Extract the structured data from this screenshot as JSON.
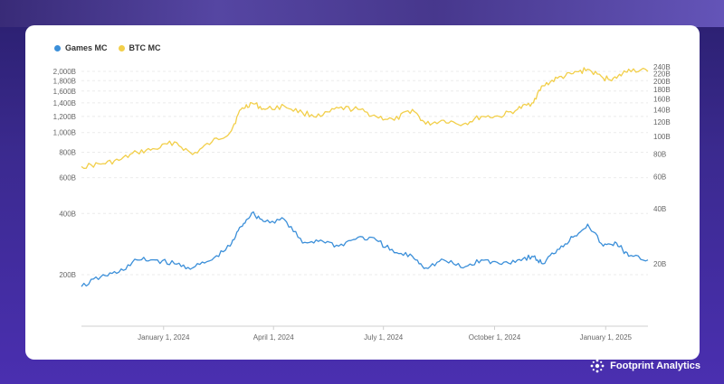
{
  "brand": {
    "name": "Footprint Analytics",
    "icon": "footprint-logo-icon"
  },
  "legend": [
    {
      "label": "Games MC",
      "color": "#3b8fd9"
    },
    {
      "label": "BTC MC",
      "color": "#f2cf4a"
    }
  ],
  "chart_data": {
    "type": "line",
    "title": "",
    "grid": true,
    "legend_position": "top-left",
    "x_range": [
      "2023-10-25",
      "2025-02-05"
    ],
    "x_ticks": [
      "January 1, 2024",
      "April 1, 2024",
      "July 1, 2024",
      "October 1, 2024",
      "January 1, 2025"
    ],
    "left_axis": {
      "scale": "log",
      "ticks": [
        "2,000B",
        "1,800B",
        "1,600B",
        "1,400B",
        "1,200B",
        "1,000B",
        "800B",
        "600B",
        "400B",
        "200B"
      ]
    },
    "right_axis": {
      "scale": "log",
      "ticks": [
        "240B",
        "220B",
        "200B",
        "180B",
        "160B",
        "140B",
        "120B",
        "100B",
        "80B",
        "60B",
        "40B",
        "20B"
      ]
    },
    "series": [
      {
        "name": "BTC MC",
        "axis": "left",
        "color": "#f2cf4a",
        "x": [
          "2023-10-25",
          "2023-11-10",
          "2023-11-25",
          "2023-12-10",
          "2023-12-25",
          "2024-01-10",
          "2024-01-25",
          "2024-02-10",
          "2024-02-25",
          "2024-03-05",
          "2024-03-14",
          "2024-03-25",
          "2024-04-10",
          "2024-04-25",
          "2024-05-10",
          "2024-05-25",
          "2024-06-10",
          "2024-06-25",
          "2024-07-10",
          "2024-07-25",
          "2024-08-05",
          "2024-08-20",
          "2024-09-05",
          "2024-09-20",
          "2024-10-05",
          "2024-10-20",
          "2024-11-01",
          "2024-11-10",
          "2024-11-22",
          "2024-12-05",
          "2024-12-17",
          "2024-12-30",
          "2025-01-10",
          "2025-01-20",
          "2025-02-05"
        ],
        "values": [
          680,
          700,
          730,
          800,
          830,
          900,
          780,
          900,
          1000,
          1300,
          1400,
          1300,
          1350,
          1250,
          1200,
          1320,
          1300,
          1200,
          1150,
          1300,
          1100,
          1150,
          1100,
          1200,
          1200,
          1300,
          1400,
          1700,
          1850,
          1950,
          2050,
          1850,
          1850,
          2050,
          2000
        ]
      },
      {
        "name": "Games MC",
        "axis": "right",
        "color": "#3b8fd9",
        "x": [
          "2023-10-25",
          "2023-11-10",
          "2023-11-25",
          "2023-12-10",
          "2023-12-25",
          "2024-01-10",
          "2024-01-25",
          "2024-02-10",
          "2024-02-25",
          "2024-03-05",
          "2024-03-14",
          "2024-03-25",
          "2024-04-10",
          "2024-04-25",
          "2024-05-10",
          "2024-05-25",
          "2024-06-10",
          "2024-06-25",
          "2024-07-10",
          "2024-07-25",
          "2024-08-05",
          "2024-08-20",
          "2024-09-05",
          "2024-09-20",
          "2024-10-05",
          "2024-10-20",
          "2024-11-01",
          "2024-11-10",
          "2024-11-22",
          "2024-12-05",
          "2024-12-17",
          "2024-12-30",
          "2025-01-10",
          "2025-01-20",
          "2025-02-05"
        ],
        "values": [
          15,
          17,
          18,
          21,
          21,
          20,
          19,
          21,
          25,
          32,
          38,
          34,
          35,
          26,
          27,
          25,
          28,
          27,
          23,
          22,
          19,
          21,
          19,
          21,
          20,
          21,
          22,
          20,
          24,
          28,
          33,
          25,
          26,
          22,
          21
        ]
      }
    ]
  }
}
